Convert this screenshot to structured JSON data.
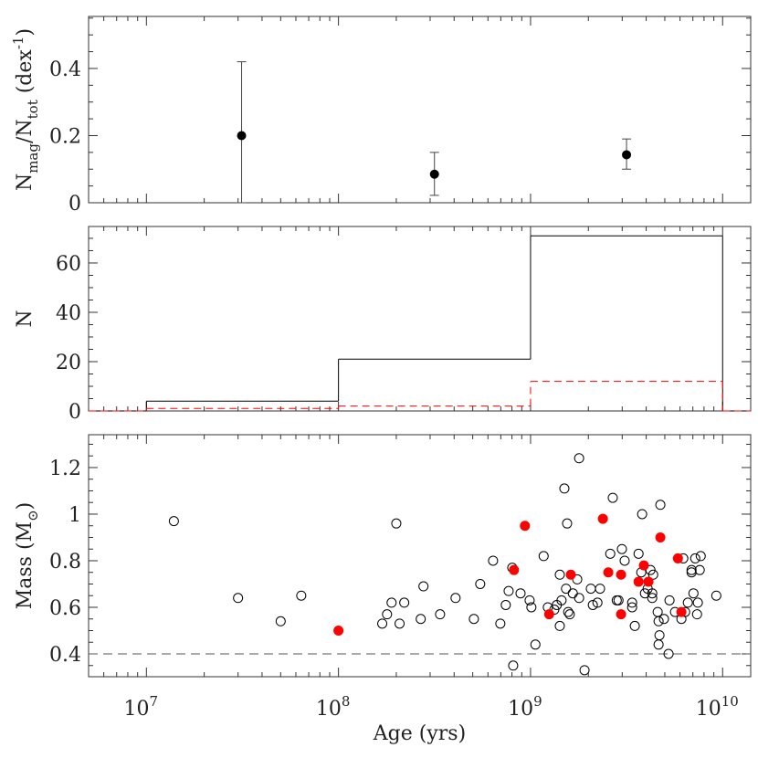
{
  "chart_data": [
    {
      "type": "errorbar",
      "xscale": "log",
      "xlim": [
        5000000.0,
        14000000000.0
      ],
      "ylabel": [
        {
          "text": "N"
        },
        {
          "text": "mag",
          "shift": "sub"
        },
        {
          "text": "/N"
        },
        {
          "text": "tot",
          "shift": "sub"
        },
        {
          "text": " (dex"
        },
        {
          "text": "-1",
          "shift": "sup"
        },
        {
          "text": ")"
        }
      ],
      "ylim": [
        0,
        0.555
      ],
      "yticks": [
        0,
        0.2,
        0.4
      ],
      "yminor": 0.05,
      "series": [
        {
          "color": "#000000",
          "marker": "filled",
          "x": [
            31300000.0,
            316000000.0,
            3160000000.0
          ],
          "values": [
            0.2,
            0.085,
            0.143
          ],
          "y_low": [
            0,
            0.022,
            0.1
          ],
          "y_high": [
            0.42,
            0.15,
            0.19
          ]
        }
      ]
    },
    {
      "type": "histogram",
      "xscale": "log",
      "xlim": [
        5000000.0,
        14000000000.0
      ],
      "ylabel": [
        {
          "text": "N"
        }
      ],
      "ylim": [
        0,
        74.8
      ],
      "yticks": [
        0,
        20,
        40,
        60
      ],
      "yminor": 5,
      "bins": [
        10000000.0,
        100000000.0,
        1000000000.0,
        10000000000.0
      ],
      "series": [
        {
          "color": "#000000",
          "linestyle": "solid",
          "values": [
            4,
            21,
            71
          ]
        },
        {
          "color": "#ff0000",
          "linestyle": "dashed",
          "values": [
            1,
            2,
            12
          ]
        }
      ]
    },
    {
      "type": "scatter",
      "xscale": "log",
      "xlim": [
        5000000.0,
        14000000000.0
      ],
      "xticks": [
        {
          "value": 10000000.0,
          "label": "10",
          "sup": "7"
        },
        {
          "value": 100000000.0,
          "label": "10",
          "sup": "8"
        },
        {
          "value": 1000000000.0,
          "label": "10",
          "sup": "9"
        },
        {
          "value": 10000000000.0,
          "label": "10",
          "sup": "10"
        }
      ],
      "xlabel": "Age (yrs)",
      "ylabel": [
        {
          "text": "Mass (M"
        },
        {
          "text": "⊙",
          "shift": "sub"
        },
        {
          "text": ")"
        }
      ],
      "ylim": [
        0.302,
        1.341
      ],
      "yticks": [
        0.4,
        0.6,
        0.8,
        1,
        1.2
      ],
      "yminor": 0.05,
      "hline": {
        "value": 0.4,
        "color": "#555555",
        "linestyle": "dashed"
      },
      "series": [
        {
          "color": "#000000",
          "marker": "open",
          "x": [
            13900000.0,
            30000000.0,
            50000000.0,
            64000000.0,
            169000000.0,
            179000000.0,
            189000000.0,
            200000000.0,
            208000000.0,
            220000000.0,
            268000000.0,
            277000000.0,
            338000000.0,
            407000000.0,
            507000000.0,
            547000000.0,
            638000000.0,
            696000000.0,
            743000000.0,
            769000000.0,
            803000000.0,
            812000000.0,
            887000000.0,
            989000000.0,
            1010000000.0,
            1060000000.0,
            1170000000.0,
            1230000000.0,
            1330000000.0,
            1370000000.0,
            1420000000.0,
            1420000000.0,
            1450000000.0,
            1500000000.0,
            1530000000.0,
            1550000000.0,
            1570000000.0,
            1600000000.0,
            1660000000.0,
            1750000000.0,
            1790000000.0,
            1790000000.0,
            1910000000.0,
            2060000000.0,
            2110000000.0,
            2230000000.0,
            2300000000.0,
            2600000000.0,
            2680000000.0,
            2810000000.0,
            2870000000.0,
            2990000000.0,
            3090000000.0,
            3380000000.0,
            3380000000.0,
            3490000000.0,
            3650000000.0,
            3770000000.0,
            3810000000.0,
            3940000000.0,
            4070000000.0,
            4210000000.0,
            4300000000.0,
            4300000000.0,
            4350000000.0,
            4590000000.0,
            4640000000.0,
            4640000000.0,
            4690000000.0,
            4740000000.0,
            4950000000.0,
            5230000000.0,
            5290000000.0,
            5650000000.0,
            6100000000.0,
            6240000000.0,
            6380000000.0,
            6590000000.0,
            6890000000.0,
            6890000000.0,
            7050000000.0,
            7200000000.0,
            7360000000.0,
            7430000000.0,
            7600000000.0,
            7690000000.0,
            9270000000.0
          ],
          "values": [
            0.97,
            0.64,
            0.54,
            0.65,
            0.53,
            0.57,
            0.62,
            0.96,
            0.53,
            0.62,
            0.55,
            0.69,
            0.57,
            0.64,
            0.55,
            0.7,
            0.8,
            0.53,
            0.61,
            0.67,
            0.77,
            0.35,
            0.66,
            0.63,
            0.6,
            0.44,
            0.82,
            0.6,
            0.59,
            0.61,
            0.74,
            0.52,
            0.63,
            1.11,
            0.68,
            0.96,
            0.58,
            0.57,
            0.66,
            0.72,
            1.24,
            0.64,
            0.33,
            0.68,
            0.61,
            0.62,
            0.68,
            0.83,
            1.07,
            0.63,
            0.63,
            0.85,
            0.8,
            0.62,
            0.6,
            0.52,
            0.83,
            0.75,
            1.0,
            0.66,
            0.68,
            0.76,
            0.64,
            0.66,
            0.74,
            0.58,
            0.54,
            0.44,
            0.48,
            1.04,
            0.55,
            0.4,
            0.63,
            0.58,
            0.55,
            0.81,
            0.58,
            0.62,
            0.76,
            0.75,
            0.66,
            0.81,
            0.57,
            0.62,
            0.76,
            0.82,
            0.65
          ]
        },
        {
          "color": "#ff0000",
          "marker": "filled",
          "x": [
            100000000.0,
            820000000.0,
            935000000.0,
            1250000000.0,
            1620000000.0,
            2380000000.0,
            2540000000.0,
            2960000000.0,
            2960000000.0,
            3650000000.0,
            3890000000.0,
            4110000000.0,
            4740000000.0,
            5850000000.0,
            6100000000.0
          ],
          "values": [
            0.5,
            0.76,
            0.95,
            0.57,
            0.74,
            0.98,
            0.75,
            0.74,
            0.57,
            0.71,
            0.78,
            0.71,
            0.9,
            0.81,
            0.58
          ]
        }
      ]
    }
  ]
}
